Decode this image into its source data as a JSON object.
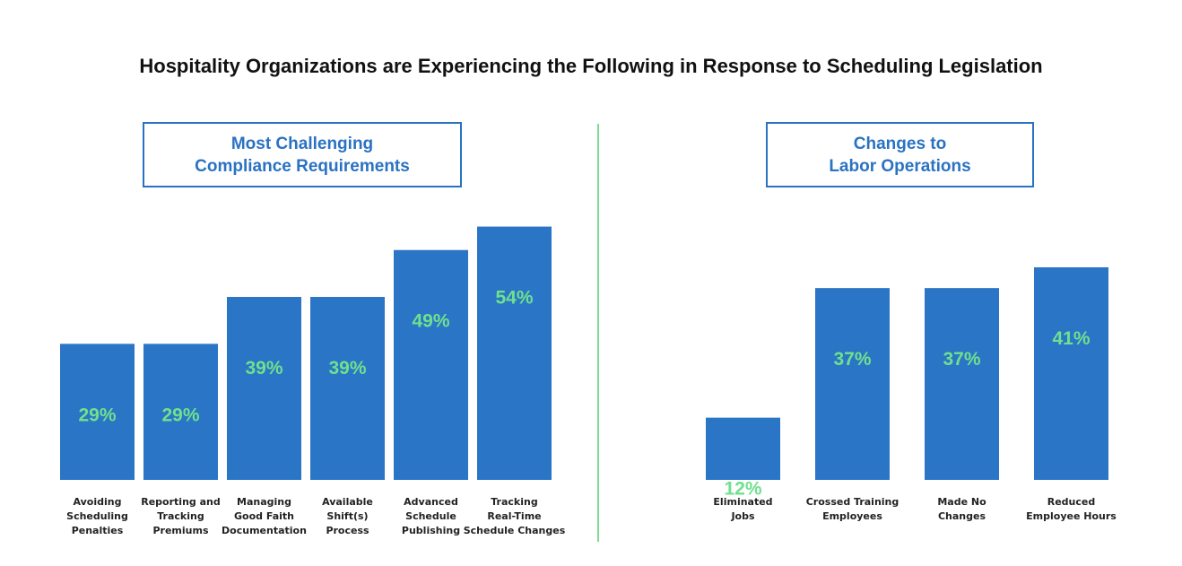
{
  "title": "Hospitality Organizations are Experiencing the Following in Response to Scheduling Legislation",
  "colors": {
    "bar": "#2a75c5",
    "value_text": "#6fe08e",
    "panel_title": "#2a72c2",
    "divider": "#7ddc8e"
  },
  "chart_data": [
    {
      "type": "bar",
      "title_lines": [
        "Most Challenging",
        "Compliance Requirements"
      ],
      "categories": [
        [
          "Avoiding",
          "Scheduling",
          "Penalties"
        ],
        [
          "Reporting and",
          "Tracking",
          "Premiums"
        ],
        [
          "Managing",
          "Good Faith",
          "Documentation"
        ],
        [
          "Available",
          "Shift(s)",
          "Process"
        ],
        [
          "Advanced",
          "Schedule",
          "Publishing"
        ],
        [
          "Tracking",
          "Real-Time",
          "Schedule Changes"
        ]
      ],
      "values": [
        29,
        29,
        39,
        39,
        49,
        54
      ],
      "value_labels": [
        "29%",
        "29%",
        "39%",
        "39%",
        "49%",
        "54%"
      ],
      "xlabel": "",
      "ylabel": "",
      "grid": false
    },
    {
      "type": "bar",
      "title_lines": [
        "Changes to",
        "Labor Operations"
      ],
      "categories": [
        [
          "Eliminated",
          "Jobs"
        ],
        [
          "Crossed Training",
          "Employees"
        ],
        [
          "Made No",
          "Changes"
        ],
        [
          "Reduced",
          "Employee Hours"
        ]
      ],
      "values": [
        12,
        37,
        37,
        41
      ],
      "value_labels": [
        "12%",
        "37%",
        "37%",
        "41%"
      ],
      "xlabel": "",
      "ylabel": "",
      "grid": false
    }
  ]
}
